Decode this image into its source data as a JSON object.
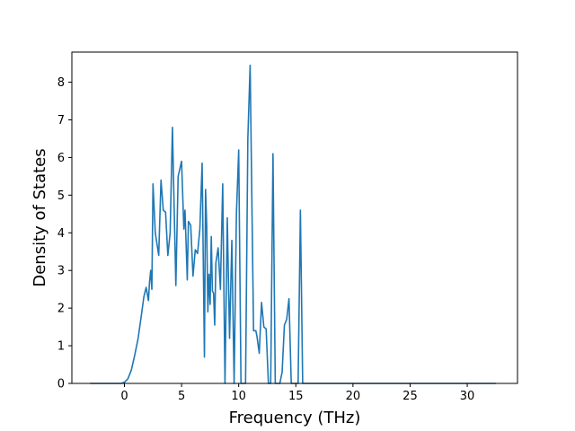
{
  "chart_data": {
    "type": "line",
    "title": "",
    "xlabel": "Frequency (THz)",
    "ylabel": "Density of States",
    "xlim": [
      -4.6,
      34.4
    ],
    "ylim": [
      0,
      8.8
    ],
    "xticks": [
      0,
      5,
      10,
      15,
      20,
      25,
      30
    ],
    "yticks": [
      0,
      1,
      2,
      3,
      4,
      5,
      6,
      7,
      8
    ],
    "grid": false,
    "legend": "none",
    "series": [
      {
        "color": "#1f77b4",
        "x": [
          -3.0,
          -0.3,
          0.0,
          0.3,
          0.6,
          0.9,
          1.2,
          1.5,
          1.7,
          1.9,
          2.1,
          2.2,
          2.3,
          2.4,
          2.5,
          2.7,
          3.0,
          3.2,
          3.4,
          3.6,
          3.8,
          4.0,
          4.2,
          4.5,
          4.7,
          5.0,
          5.2,
          5.3,
          5.5,
          5.6,
          5.7,
          5.8,
          6.0,
          6.2,
          6.4,
          6.6,
          6.8,
          7.0,
          7.1,
          7.2,
          7.3,
          7.4,
          7.5,
          7.6,
          7.7,
          7.8,
          7.9,
          8.0,
          8.2,
          8.4,
          8.6,
          8.8,
          9.0,
          9.2,
          9.4,
          9.6,
          9.8,
          10.0,
          10.2,
          10.4,
          10.6,
          10.8,
          11.0,
          11.3,
          11.5,
          11.6,
          11.8,
          12.0,
          12.2,
          12.4,
          12.6,
          12.8,
          13.0,
          13.2,
          13.4,
          13.6,
          13.8,
          14.0,
          14.2,
          14.4,
          14.6,
          14.8,
          15.0,
          15.2,
          15.4,
          15.6,
          18.0,
          18.4,
          18.7,
          18.9,
          19.1,
          19.4,
          19.8,
          32.5
        ],
        "y": [
          0.0,
          0.0,
          0.03,
          0.12,
          0.35,
          0.75,
          1.2,
          1.85,
          2.3,
          2.55,
          2.2,
          2.7,
          3.0,
          2.5,
          5.3,
          4.0,
          3.4,
          5.4,
          4.6,
          4.55,
          3.4,
          4.0,
          6.8,
          2.6,
          5.5,
          5.9,
          4.1,
          4.6,
          2.75,
          4.3,
          4.25,
          4.2,
          2.85,
          3.55,
          3.45,
          4.1,
          5.85,
          0.7,
          5.15,
          4.2,
          1.9,
          2.9,
          2.1,
          3.9,
          2.45,
          2.4,
          1.55,
          3.2,
          3.6,
          2.5,
          5.3,
          0.0,
          4.4,
          1.2,
          3.8,
          0.0,
          4.5,
          6.2,
          0.0,
          0.0,
          0.0,
          6.5,
          8.45,
          1.4,
          1.4,
          1.25,
          0.8,
          2.15,
          1.5,
          1.45,
          0.0,
          0.0,
          6.1,
          0.0,
          0.0,
          0.0,
          0.3,
          1.55,
          1.7,
          2.25,
          0.0,
          0.0,
          0.0,
          0.0,
          4.6,
          0.0,
          0.0,
          0.0,
          0.0,
          0.0,
          0.0,
          0.0,
          0.0,
          0.0
        ]
      }
    ]
  }
}
